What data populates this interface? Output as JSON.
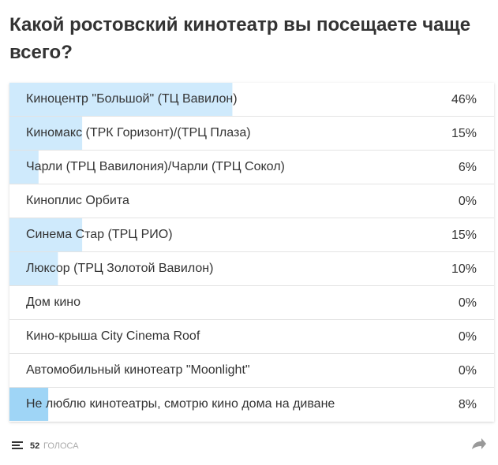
{
  "chart_data": {
    "type": "bar",
    "title": "Какой ростовский кинотеатр вы посещаете чаще всего?",
    "categories": [
      "Киноцентр \"Большой\" (ТЦ Вавилон)",
      "Киномакс (ТРК Горизонт)/(ТРЦ Плаза)",
      "Чарли (ТРЦ Вавилония)/Чарли (ТРЦ Сокол)",
      "Киноплис Орбита",
      "Синема Стар (ТРЦ РИО)",
      "Люксор (ТРЦ Золотой Вавилон)",
      "Дом кино",
      "Кино-крыша City Cinema Roof",
      "Автомобильный кинотеатр \"Moonlight\"",
      "Не люблю кинотеатры, смотрю кино дома на диване"
    ],
    "values": [
      46,
      15,
      6,
      0,
      15,
      10,
      0,
      0,
      0,
      8
    ],
    "value_labels": [
      "46%",
      "15%",
      "6%",
      "0%",
      "15%",
      "10%",
      "0%",
      "0%",
      "0%",
      "8%"
    ],
    "colors": [
      "#cfeafc",
      "#cfeafc",
      "#cfeafc",
      "#cfeafc",
      "#cfeafc",
      "#cfeafc",
      "#cfeafc",
      "#cfeafc",
      "#cfeafc",
      "#9fd5f6"
    ],
    "xlim": [
      0,
      100
    ],
    "votes": 52,
    "votes_label": "ГОЛОСА"
  }
}
